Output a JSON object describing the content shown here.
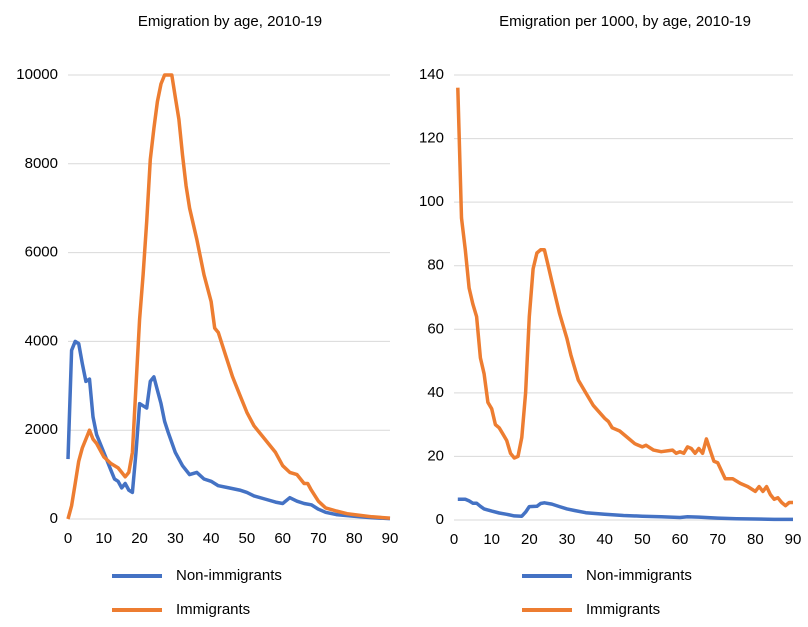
{
  "chart_data": [
    {
      "type": "line",
      "title": "Emigration by age, 2010-19",
      "xlim": [
        0,
        90
      ],
      "xticks": [
        0,
        10,
        20,
        30,
        40,
        50,
        60,
        70,
        80,
        90
      ],
      "ylim": [
        0,
        10000
      ],
      "yticks": [
        0,
        2000,
        4000,
        6000,
        8000,
        10000
      ],
      "grid": true,
      "series": [
        {
          "name": "Non-immigrants",
          "color": "#4472c4",
          "x": [
            0,
            1,
            2,
            3,
            4,
            5,
            6,
            7,
            8,
            10,
            12,
            13,
            14,
            15,
            16,
            17,
            18,
            19,
            20,
            21,
            22,
            23,
            24,
            25,
            26,
            27,
            28,
            30,
            32,
            34,
            36,
            38,
            40,
            42,
            45,
            48,
            50,
            52,
            55,
            58,
            60,
            62,
            64,
            66,
            68,
            70,
            72,
            75,
            80,
            85,
            90
          ],
          "values": [
            1350,
            3800,
            4000,
            3950,
            3500,
            3100,
            3150,
            2300,
            1900,
            1500,
            1100,
            900,
            850,
            700,
            800,
            650,
            600,
            1500,
            2600,
            2550,
            2500,
            3100,
            3200,
            2900,
            2600,
            2200,
            1950,
            1500,
            1200,
            1000,
            1050,
            900,
            850,
            750,
            700,
            650,
            600,
            520,
            450,
            380,
            350,
            480,
            400,
            350,
            320,
            220,
            150,
            100,
            60,
            30,
            10
          ]
        },
        {
          "name": "Immigrants",
          "color": "#ed7d31",
          "x": [
            0,
            1,
            2,
            3,
            4,
            5,
            6,
            7,
            8,
            10,
            12,
            14,
            15,
            16,
            17,
            18,
            19,
            20,
            21,
            22,
            23,
            24,
            25,
            26,
            27,
            28,
            29,
            30,
            31,
            32,
            33,
            34,
            36,
            38,
            40,
            41,
            42,
            44,
            46,
            48,
            50,
            52,
            55,
            58,
            60,
            62,
            64,
            66,
            67,
            68,
            70,
            72,
            75,
            78,
            80,
            85,
            90
          ],
          "values": [
            0,
            300,
            800,
            1300,
            1600,
            1800,
            2000,
            1800,
            1700,
            1400,
            1250,
            1150,
            1050,
            950,
            1050,
            1500,
            3000,
            4500,
            5500,
            6700,
            8100,
            8800,
            9400,
            9800,
            10000,
            10000,
            10000,
            9500,
            9000,
            8200,
            7500,
            7000,
            6300,
            5500,
            4900,
            4300,
            4200,
            3700,
            3200,
            2800,
            2400,
            2100,
            1800,
            1500,
            1200,
            1050,
            1000,
            800,
            800,
            650,
            400,
            250,
            180,
            120,
            100,
            50,
            20
          ]
        }
      ]
    },
    {
      "type": "line",
      "title": "Emigration per 1000, by age, 2010-19",
      "xlim": [
        0,
        90
      ],
      "xticks": [
        0,
        10,
        20,
        30,
        40,
        50,
        60,
        70,
        80,
        90
      ],
      "ylim": [
        0,
        140
      ],
      "yticks": [
        0,
        20,
        40,
        60,
        80,
        100,
        120,
        140
      ],
      "grid": true,
      "series": [
        {
          "name": "Non-immigrants",
          "color": "#4472c4",
          "x": [
            1,
            2,
            3,
            4,
            5,
            6,
            7,
            8,
            10,
            12,
            14,
            16,
            18,
            19,
            20,
            22,
            23,
            24,
            26,
            28,
            30,
            32,
            35,
            40,
            45,
            50,
            55,
            60,
            62,
            65,
            70,
            75,
            80,
            85,
            90
          ],
          "values": [
            6.5,
            6.5,
            6.5,
            6,
            5.3,
            5.3,
            4.3,
            3.5,
            2.8,
            2.2,
            1.8,
            1.3,
            1.2,
            2.5,
            4.2,
            4.3,
            5.2,
            5.4,
            5,
            4.2,
            3.5,
            3,
            2.3,
            1.8,
            1.4,
            1.2,
            1,
            0.8,
            1,
            0.9,
            0.6,
            0.4,
            0.3,
            0.2,
            0.2
          ]
        },
        {
          "name": "Immigrants",
          "color": "#ed7d31",
          "x": [
            1,
            2,
            3,
            4,
            5,
            6,
            7,
            8,
            9,
            10,
            11,
            12,
            13,
            14,
            15,
            16,
            17,
            18,
            19,
            20,
            21,
            22,
            23,
            24,
            25,
            26,
            27,
            28,
            30,
            31,
            32,
            33,
            35,
            37,
            40,
            41,
            42,
            44,
            46,
            48,
            50,
            51,
            53,
            55,
            58,
            59,
            60,
            61,
            62,
            63,
            64,
            65,
            66,
            67,
            68,
            69,
            70,
            72,
            74,
            76,
            78,
            80,
            81,
            82,
            83,
            84,
            85,
            86,
            87,
            88,
            89,
            90
          ],
          "values": [
            136,
            95,
            85,
            73,
            68,
            64,
            51,
            46,
            37,
            35,
            30,
            29,
            27,
            25,
            21,
            19.5,
            20,
            26,
            40,
            64,
            79,
            84,
            85,
            85,
            80,
            75,
            70,
            65,
            57,
            52,
            48,
            44,
            40,
            36,
            32,
            31,
            29,
            28,
            26,
            24,
            23,
            23.5,
            22,
            21.5,
            22,
            21,
            21.5,
            21,
            23,
            22.5,
            21,
            22.5,
            21,
            25.5,
            22,
            18.5,
            18,
            13,
            13,
            11.5,
            10.5,
            9,
            10.5,
            9,
            10.5,
            8,
            6.5,
            7,
            5.5,
            4.5,
            5.5,
            5.5
          ]
        }
      ]
    }
  ]
}
